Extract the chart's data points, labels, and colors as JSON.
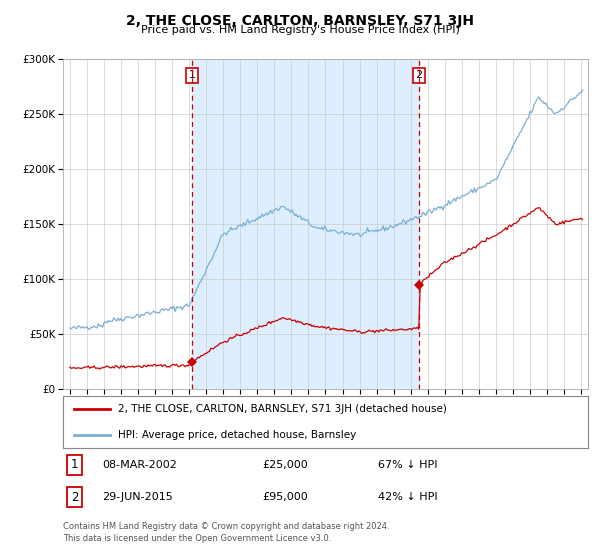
{
  "title": "2, THE CLOSE, CARLTON, BARNSLEY, S71 3JH",
  "subtitle": "Price paid vs. HM Land Registry's House Price Index (HPI)",
  "legend_line1": "2, THE CLOSE, CARLTON, BARNSLEY, S71 3JH (detached house)",
  "legend_line2": "HPI: Average price, detached house, Barnsley",
  "transaction1_date": "08-MAR-2002",
  "transaction1_price": 25000,
  "transaction1_note": "67% ↓ HPI",
  "transaction2_date": "29-JUN-2015",
  "transaction2_price": 95000,
  "transaction2_note": "42% ↓ HPI",
  "copyright_text": "Contains HM Land Registry data © Crown copyright and database right 2024.\nThis data is licensed under the Open Government Licence v3.0.",
  "hpi_color": "#7bafd4",
  "price_color": "#cc0000",
  "shade_color": "#ddeeff",
  "dashed_color": "#cc0000",
  "ylim_max": 300000,
  "ylim_min": 0,
  "year_start": 1995,
  "year_end": 2025,
  "transaction1_year": 2002.18,
  "transaction2_year": 2015.49
}
